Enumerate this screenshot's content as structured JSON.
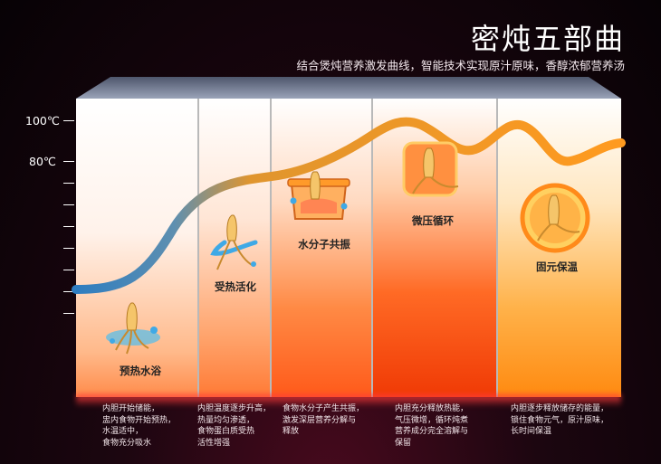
{
  "header": {
    "title": "密炖五部曲",
    "subtitle": "结合煲炖营养激发曲线，智能技术实现原汁原味，香醇浓郁营养汤"
  },
  "axis": {
    "label_100": "100℃",
    "label_80": "80℃"
  },
  "stages": [
    {
      "label": "预热水浴",
      "desc": [
        "内胆开始储能，",
        "盅内食物开始预热，",
        "水温适中，",
        "食物充分吸水"
      ]
    },
    {
      "label": "受热活化",
      "desc": [
        "内胆温度逐步升高，",
        "热量均匀渗透，",
        "食物蛋白质受热",
        "活性增强"
      ]
    },
    {
      "label": "水分子共振",
      "desc": [
        "食物水分子产生共振，",
        "激发深层营养分解与",
        "释放"
      ]
    },
    {
      "label": "微压循环",
      "desc": [
        "内胆充分释放热能，",
        "气压微增，循环炖煮",
        "营养成分完全溶解与",
        "保留"
      ]
    },
    {
      "label": "固元保温",
      "desc": [
        "内胆逐步释放储存的能量，",
        "锁住食物元气，原汁原味，",
        "长时间保温"
      ]
    }
  ],
  "colors": {
    "curve_start": "#2e7dc0",
    "curve_end": "#ff9a1f",
    "accent": "#ff5a00"
  }
}
